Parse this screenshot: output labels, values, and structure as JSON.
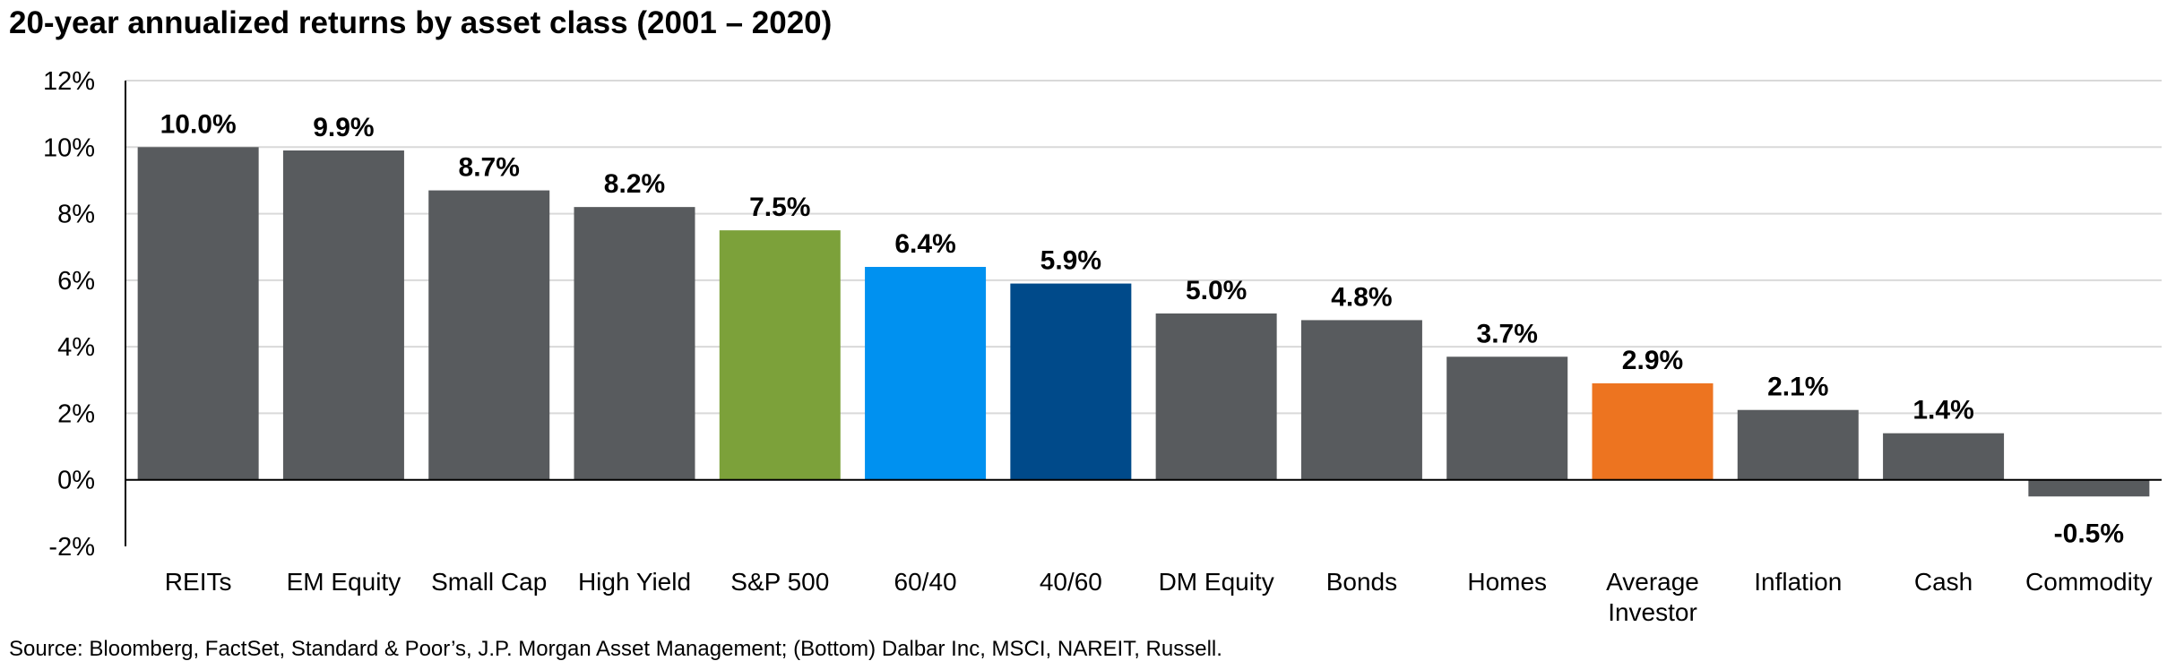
{
  "chart_data": {
    "type": "bar",
    "title": "20-year annualized returns by asset class (2001 – 2020)",
    "categories": [
      [
        "REITs"
      ],
      [
        "EM Equity"
      ],
      [
        "Small Cap"
      ],
      [
        "High Yield"
      ],
      [
        "S&P 500"
      ],
      [
        "60/40"
      ],
      [
        "40/60"
      ],
      [
        "DM Equity"
      ],
      [
        "Bonds"
      ],
      [
        "Homes"
      ],
      [
        "Average",
        "Investor"
      ],
      [
        "Inflation"
      ],
      [
        "Cash"
      ],
      [
        "Commodity"
      ]
    ],
    "values": [
      10.0,
      9.9,
      8.7,
      8.2,
      7.5,
      6.4,
      5.9,
      5.0,
      4.8,
      3.7,
      2.9,
      2.1,
      1.4,
      -0.5
    ],
    "value_labels": [
      "10.0%",
      "9.9%",
      "8.7%",
      "8.2%",
      "7.5%",
      "6.4%",
      "5.9%",
      "5.0%",
      "4.8%",
      "3.7%",
      "2.9%",
      "2.1%",
      "1.4%",
      "-0.5%"
    ],
    "colors": [
      "#585b5e",
      "#585b5e",
      "#585b5e",
      "#585b5e",
      "#7ca13a",
      "#0091f0",
      "#004a8a",
      "#585b5e",
      "#585b5e",
      "#585b5e",
      "#ed7420",
      "#585b5e",
      "#585b5e",
      "#585b5e"
    ],
    "ylim": [
      -2,
      12
    ],
    "yticks": [
      12,
      10,
      8,
      6,
      4,
      2,
      0,
      -2
    ],
    "ytick_labels": [
      "12%",
      "10%",
      "8%",
      "6%",
      "4%",
      "2%",
      "0%",
      "-2%"
    ],
    "grid": true,
    "xlabel": "",
    "ylabel": ""
  },
  "source_note": "Source: Bloomberg, FactSet, Standard & Poor’s, J.P. Morgan Asset Management; (Bottom) Dalbar Inc, MSCI, NAREIT, Russell."
}
